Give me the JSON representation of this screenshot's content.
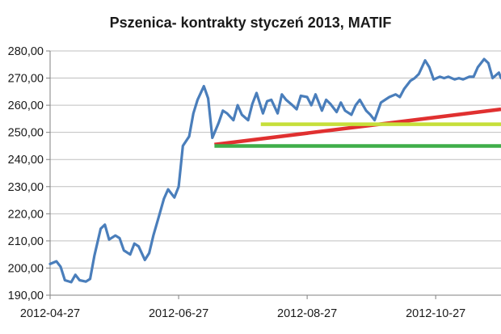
{
  "chart_data": {
    "type": "line",
    "title": "Pszenica- kontrakty styczeń 2013, MATIF",
    "xlabel": "",
    "ylabel": "",
    "x_tick_labels": [
      "2012-04-27",
      "2012-06-27",
      "2012-08-27",
      "2012-10-27"
    ],
    "y_tick_labels": [
      "190,00",
      "200,00",
      "210,00",
      "220,00",
      "230,00",
      "240,00",
      "250,00",
      "260,00",
      "270,00",
      "280,00"
    ],
    "xlim": [
      "2012-04-27",
      "2012-11-27"
    ],
    "ylim": [
      190,
      280
    ],
    "grid": "horizontal",
    "legend": "none",
    "series": [
      {
        "color": "#4a7ebb",
        "points": [
          [
            "2012-04-27",
            201.5
          ],
          [
            "2012-04-30",
            202.5
          ],
          [
            "2012-05-02",
            200.5
          ],
          [
            "2012-05-04",
            195.5
          ],
          [
            "2012-05-07",
            194.8
          ],
          [
            "2012-05-09",
            197.5
          ],
          [
            "2012-05-11",
            195.5
          ],
          [
            "2012-05-14",
            195.0
          ],
          [
            "2012-05-16",
            196.0
          ],
          [
            "2012-05-18",
            204.5
          ],
          [
            "2012-05-21",
            214.5
          ],
          [
            "2012-05-23",
            216.0
          ],
          [
            "2012-05-25",
            210.5
          ],
          [
            "2012-05-28",
            212.0
          ],
          [
            "2012-05-30",
            211.0
          ],
          [
            "2012-06-01",
            206.5
          ],
          [
            "2012-06-04",
            205.0
          ],
          [
            "2012-06-06",
            209.0
          ],
          [
            "2012-06-08",
            208.0
          ],
          [
            "2012-06-11",
            203.0
          ],
          [
            "2012-06-13",
            205.5
          ],
          [
            "2012-06-15",
            212.0
          ],
          [
            "2012-06-18",
            220.0
          ],
          [
            "2012-06-20",
            225.5
          ],
          [
            "2012-06-22",
            229.0
          ],
          [
            "2012-06-25",
            226.0
          ],
          [
            "2012-06-27",
            230.0
          ],
          [
            "2012-06-29",
            245.0
          ],
          [
            "2012-07-02",
            248.5
          ],
          [
            "2012-07-04",
            257.0
          ],
          [
            "2012-07-06",
            262.0
          ],
          [
            "2012-07-09",
            267.0
          ],
          [
            "2012-07-11",
            262.5
          ],
          [
            "2012-07-13",
            248.0
          ],
          [
            "2012-07-16",
            253.5
          ],
          [
            "2012-07-18",
            258.0
          ],
          [
            "2012-07-20",
            257.0
          ],
          [
            "2012-07-23",
            254.5
          ],
          [
            "2012-07-25",
            260.0
          ],
          [
            "2012-07-27",
            256.5
          ],
          [
            "2012-07-30",
            254.5
          ],
          [
            "2012-08-01",
            260.5
          ],
          [
            "2012-08-03",
            264.5
          ],
          [
            "2012-08-06",
            257.0
          ],
          [
            "2012-08-08",
            261.5
          ],
          [
            "2012-08-10",
            262.0
          ],
          [
            "2012-08-13",
            257.0
          ],
          [
            "2012-08-15",
            264.0
          ],
          [
            "2012-08-17",
            262.0
          ],
          [
            "2012-08-20",
            260.0
          ],
          [
            "2012-08-22",
            258.5
          ],
          [
            "2012-08-24",
            263.5
          ],
          [
            "2012-08-27",
            263.0
          ],
          [
            "2012-08-29",
            260.0
          ],
          [
            "2012-08-31",
            264.0
          ],
          [
            "2012-09-03",
            258.0
          ],
          [
            "2012-09-05",
            262.0
          ],
          [
            "2012-09-07",
            260.5
          ],
          [
            "2012-09-10",
            257.5
          ],
          [
            "2012-09-12",
            261.0
          ],
          [
            "2012-09-14",
            258.0
          ],
          [
            "2012-09-17",
            256.5
          ],
          [
            "2012-09-19",
            260.0
          ],
          [
            "2012-09-21",
            262.0
          ],
          [
            "2012-09-24",
            258.0
          ],
          [
            "2012-09-26",
            256.5
          ],
          [
            "2012-09-28",
            254.5
          ],
          [
            "2012-10-01",
            261.0
          ],
          [
            "2012-10-03",
            262.0
          ],
          [
            "2012-10-05",
            263.0
          ],
          [
            "2012-10-08",
            264.0
          ],
          [
            "2012-10-10",
            263.0
          ],
          [
            "2012-10-12",
            266.0
          ],
          [
            "2012-10-15",
            269.0
          ],
          [
            "2012-10-17",
            270.0
          ],
          [
            "2012-10-19",
            271.5
          ],
          [
            "2012-10-22",
            276.5
          ],
          [
            "2012-10-24",
            274.0
          ],
          [
            "2012-10-26",
            269.5
          ],
          [
            "2012-10-29",
            270.5
          ],
          [
            "2012-10-31",
            270.0
          ],
          [
            "2012-11-02",
            270.5
          ],
          [
            "2012-11-05",
            269.5
          ],
          [
            "2012-11-07",
            270.0
          ],
          [
            "2012-11-09",
            269.5
          ],
          [
            "2012-11-12",
            270.5
          ],
          [
            "2012-11-14",
            270.5
          ],
          [
            "2012-11-16",
            274.0
          ],
          [
            "2012-11-19",
            277.0
          ],
          [
            "2012-11-21",
            275.5
          ],
          [
            "2012-11-23",
            270.0
          ],
          [
            "2012-11-26",
            272.0
          ],
          [
            "2012-11-27",
            270.0
          ]
        ]
      }
    ],
    "annotations": [
      {
        "type": "line",
        "color": "#e03030",
        "from": [
          "2012-07-14",
          245.5
        ],
        "to": [
          "2012-11-27",
          258.5
        ]
      },
      {
        "type": "line",
        "color": "#c6df3a",
        "from": [
          "2012-08-05",
          253.0
        ],
        "to": [
          "2012-11-27",
          253.0
        ]
      },
      {
        "type": "line",
        "color": "#3fae49",
        "from": [
          "2012-07-14",
          245.0
        ],
        "to": [
          "2012-11-27",
          245.0
        ]
      }
    ]
  }
}
